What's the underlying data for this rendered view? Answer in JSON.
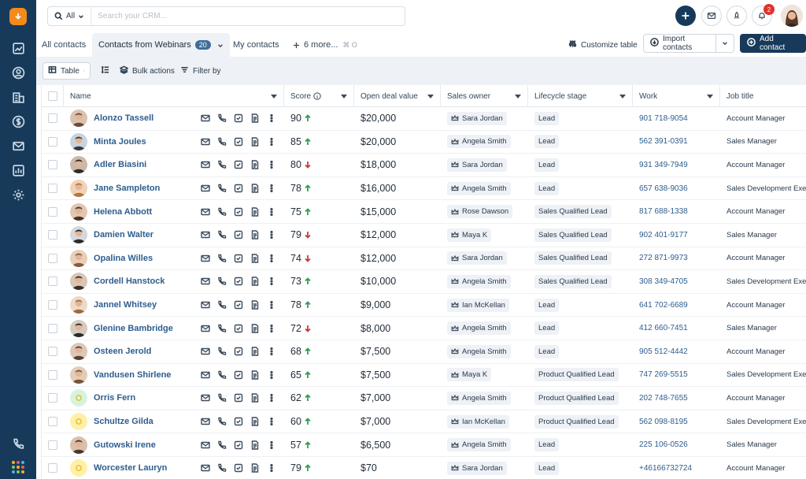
{
  "app": {
    "accent": "#173a5a",
    "logo_color": "#f28a1c"
  },
  "search": {
    "scope": "All",
    "placeholder": "Search your CRM..."
  },
  "notifications": {
    "count": "2"
  },
  "tabs": [
    {
      "label": "All contacts"
    },
    {
      "label": "Contacts from Webinars",
      "count": "20"
    },
    {
      "label": "My contacts"
    },
    {
      "label": "6 more...",
      "shortcut": "⌘ O"
    }
  ],
  "actions": {
    "customize": "Customize table",
    "import": "Import contacts",
    "add": "Add contact"
  },
  "toolbar": {
    "view": "Table",
    "bulk": "Bulk actions",
    "filter": "Filter by"
  },
  "columns": [
    "Name",
    "Score",
    "Open deal value",
    "Sales owner",
    "Lifecycle stage",
    "Work",
    "Job title"
  ],
  "contacts": [
    {
      "name": "Alonzo Tassell",
      "score": "90",
      "trend": "up",
      "deal": "$20,000",
      "owner": "Sara Jordan",
      "stage": "Lead",
      "work": "901 718-9054",
      "job": "Account Manager"
    },
    {
      "name": "Minta Joules",
      "score": "85",
      "trend": "up",
      "deal": "$20,000",
      "owner": "Angela Smith",
      "stage": "Lead",
      "work": "562 391-0391",
      "job": "Sales Manager"
    },
    {
      "name": "Adler Biasini",
      "score": "80",
      "trend": "down",
      "deal": "$18,000",
      "owner": "Sara Jordan",
      "stage": "Lead",
      "work": "931 349-7949",
      "job": "Account Manager"
    },
    {
      "name": "Jane Sampleton",
      "score": "78",
      "trend": "up",
      "deal": "$16,000",
      "owner": "Angela Smith",
      "stage": "Lead",
      "work": "657 638-9036",
      "job": "Sales Development Exec"
    },
    {
      "name": "Helena Abbott",
      "score": "75",
      "trend": "up",
      "deal": "$15,000",
      "owner": "Rose Dawson",
      "stage": "Sales Qualified Lead",
      "work": "817 688-1338",
      "job": "Account Manager"
    },
    {
      "name": "Damien Walter",
      "score": "79",
      "trend": "down",
      "deal": "$12,000",
      "owner": "Maya K",
      "stage": "Sales Qualified Lead",
      "work": "902 401-9177",
      "job": "Sales Manager"
    },
    {
      "name": "Opalina Willes",
      "score": "74",
      "trend": "down",
      "deal": "$12,000",
      "owner": "Sara Jordan",
      "stage": "Sales Qualified Lead",
      "work": "272 871-9973",
      "job": "Account Manager"
    },
    {
      "name": "Cordell Hanstock",
      "score": "73",
      "trend": "up",
      "deal": "$10,000",
      "owner": "Angela Smith",
      "stage": "Sales Qualified Lead",
      "work": "308 349-4705",
      "job": "Sales Development Exec"
    },
    {
      "name": "Jannel Whitsey",
      "score": "78",
      "trend": "up",
      "deal": "$9,000",
      "owner": "Ian McKellan",
      "stage": "Lead",
      "work": "641 702-6689",
      "job": "Account Manager"
    },
    {
      "name": "Glenine Bambridge",
      "score": "72",
      "trend": "down",
      "deal": "$8,000",
      "owner": "Angela Smith",
      "stage": "Lead",
      "work": "412 660-7451",
      "job": "Sales Manager"
    },
    {
      "name": "Osteen Jerold",
      "score": "68",
      "trend": "up",
      "deal": "$7,500",
      "owner": "Angela Smith",
      "stage": "Lead",
      "work": "905 512-4442",
      "job": "Account Manager"
    },
    {
      "name": "Vandusen Shirlene",
      "score": "65",
      "trend": "up",
      "deal": "$7,500",
      "owner": "Maya K",
      "stage": "Product Qualified Lead",
      "work": "747 269-5515",
      "job": "Sales Development Exec"
    },
    {
      "name": "Orris Fern",
      "score": "62",
      "trend": "up",
      "deal": "$7,000",
      "owner": "Angela Smith",
      "stage": "Product Qualified Lead",
      "work": "202 748-7655",
      "job": "Account Manager"
    },
    {
      "name": "Schultze Gilda",
      "score": "60",
      "trend": "up",
      "deal": "$7,000",
      "owner": "Ian McKellan",
      "stage": "Product Qualified Lead",
      "work": "562 098-8195",
      "job": "Sales Development Exec"
    },
    {
      "name": "Gutowski Irene",
      "score": "57",
      "trend": "up",
      "deal": "$6,500",
      "owner": "Angela Smith",
      "stage": "Lead",
      "work": "225 106-0526",
      "job": "Sales Manager"
    },
    {
      "name": "Worcester Lauryn",
      "score": "79",
      "trend": "up",
      "deal": "$70",
      "owner": "Sara Jordan",
      "stage": "Lead",
      "work": "+46166732724",
      "job": "Account Manager"
    }
  ]
}
